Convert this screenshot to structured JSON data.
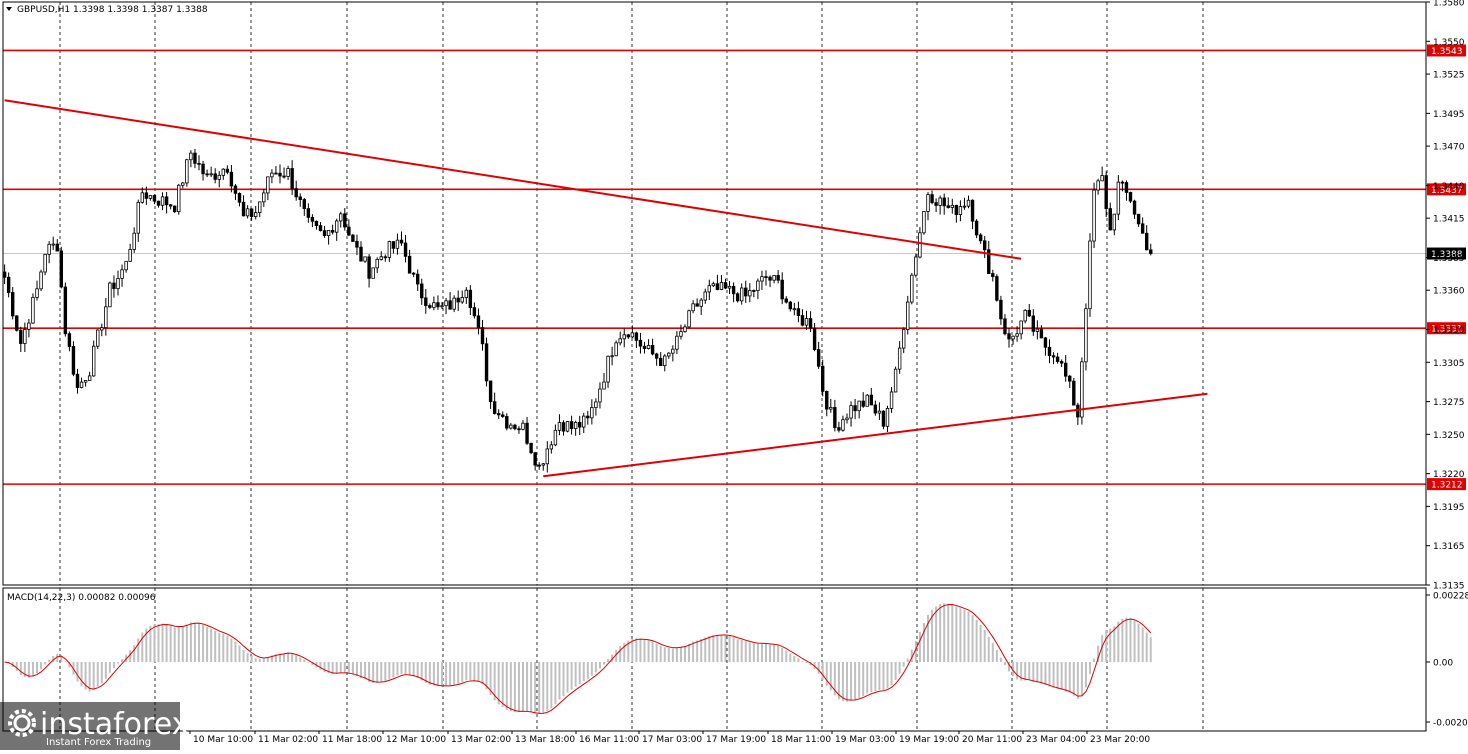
{
  "header": {
    "text": "GBPUSD,H1  1.3398 1.3398 1.3387 1.3388"
  },
  "macd": {
    "label": "MACD(14,22,3) 0.00082 0.00096",
    "ticks": [
      "0.00228",
      "0.00",
      "-0.00208"
    ]
  },
  "watermark": {
    "brand": "instaforex",
    "subtitle": "Instant Forex Trading"
  },
  "colors": {
    "level": "#e00000",
    "trendline": "#e00000",
    "bull": "#ffffff",
    "bear": "#000000",
    "macd_hist": "#c0c0c0",
    "macd_signal": "#e00000",
    "current_price": "#c0c0c0"
  },
  "chart_data": {
    "type": "candlestick",
    "symbol": "GBPUSD",
    "timeframe": "H1",
    "ylim": [
      1.3135,
      1.358
    ],
    "y_ticks": [
      "1.3580",
      "1.3550",
      "1.3525",
      "1.3495",
      "1.3470",
      "1.3440",
      "1.3415",
      "1.3385",
      "1.3360",
      "1.3330",
      "1.3305",
      "1.3275",
      "1.3250",
      "1.3220",
      "1.3195",
      "1.3165",
      "1.3135"
    ],
    "x_ticks": [
      "10 Mar 10:00",
      "11 Mar 02:00",
      "11 Mar 18:00",
      "12 Mar 10:00",
      "13 Mar 02:00",
      "13 Mar 18:00",
      "16 Mar 11:00",
      "17 Mar 03:00",
      "17 Mar 19:00",
      "18 Mar 11:00",
      "19 Mar 03:00",
      "19 Mar 19:00",
      "20 Mar 11:00",
      "23 Mar 04:00",
      "23 Mar 20:00"
    ],
    "levels": [
      {
        "label": "1.3543",
        "value": 1.3543
      },
      {
        "label": "1.3437",
        "value": 1.3437
      },
      {
        "label": "1.3331",
        "value": 1.3331
      },
      {
        "label": "1.3212",
        "value": 1.3212
      }
    ],
    "current_price": {
      "label": "1.3388",
      "value": 1.3388
    },
    "trendlines": [
      {
        "name": "descending",
        "from": [
          0,
          1.3505
        ],
        "to": [
          251,
          1.3384
        ]
      },
      {
        "name": "ascending",
        "from": [
          133,
          1.3218
        ],
        "to": [
          297,
          1.3281
        ]
      }
    ],
    "waypoints": [
      [
        0,
        1.337
      ],
      [
        2,
        1.3345
      ],
      [
        4,
        1.332
      ],
      [
        8,
        1.336
      ],
      [
        10,
        1.339
      ],
      [
        13,
        1.3395
      ],
      [
        15,
        1.333
      ],
      [
        18,
        1.3285
      ],
      [
        21,
        1.33
      ],
      [
        26,
        1.336
      ],
      [
        30,
        1.338
      ],
      [
        34,
        1.3435
      ],
      [
        37,
        1.343
      ],
      [
        42,
        1.3425
      ],
      [
        46,
        1.3465
      ],
      [
        50,
        1.3445
      ],
      [
        55,
        1.3455
      ],
      [
        59,
        1.3415
      ],
      [
        62,
        1.342
      ],
      [
        66,
        1.345
      ],
      [
        70,
        1.345
      ],
      [
        75,
        1.341
      ],
      [
        79,
        1.34
      ],
      [
        83,
        1.342
      ],
      [
        86,
        1.3395
      ],
      [
        90,
        1.3375
      ],
      [
        94,
        1.339
      ],
      [
        98,
        1.3395
      ],
      [
        102,
        1.336
      ],
      [
        107,
        1.3345
      ],
      [
        111,
        1.335
      ],
      [
        114,
        1.3365
      ],
      [
        118,
        1.3315
      ],
      [
        120,
        1.3275
      ],
      [
        124,
        1.326
      ],
      [
        128,
        1.3255
      ],
      [
        132,
        1.3225
      ],
      [
        134,
        1.324
      ],
      [
        137,
        1.326
      ],
      [
        140,
        1.3255
      ],
      [
        144,
        1.326
      ],
      [
        148,
        1.3295
      ],
      [
        151,
        1.3325
      ],
      [
        154,
        1.333
      ],
      [
        158,
        1.3315
      ],
      [
        163,
        1.3305
      ],
      [
        166,
        1.332
      ],
      [
        170,
        1.3345
      ],
      [
        174,
        1.336
      ],
      [
        178,
        1.336
      ],
      [
        183,
        1.3355
      ],
      [
        188,
        1.337
      ],
      [
        191,
        1.3365
      ],
      [
        195,
        1.334
      ],
      [
        199,
        1.3335
      ],
      [
        202,
        1.3285
      ],
      [
        205,
        1.3255
      ],
      [
        209,
        1.327
      ],
      [
        213,
        1.3275
      ],
      [
        217,
        1.326
      ],
      [
        220,
        1.3295
      ],
      [
        223,
        1.3355
      ],
      [
        226,
        1.3405
      ],
      [
        228,
        1.3435
      ],
      [
        230,
        1.343
      ],
      [
        234,
        1.342
      ],
      [
        238,
        1.343
      ],
      [
        241,
        1.3395
      ],
      [
        244,
        1.337
      ],
      [
        246,
        1.334
      ],
      [
        248,
        1.332
      ],
      [
        252,
        1.334
      ],
      [
        256,
        1.332
      ],
      [
        260,
        1.331
      ],
      [
        263,
        1.3285
      ],
      [
        265,
        1.3265
      ],
      [
        267,
        1.335
      ],
      [
        269,
        1.3435
      ],
      [
        271,
        1.3445
      ],
      [
        273,
        1.3405
      ],
      [
        275,
        1.344
      ],
      [
        278,
        1.343
      ],
      [
        280,
        1.341
      ],
      [
        283,
        1.3388
      ]
    ]
  }
}
